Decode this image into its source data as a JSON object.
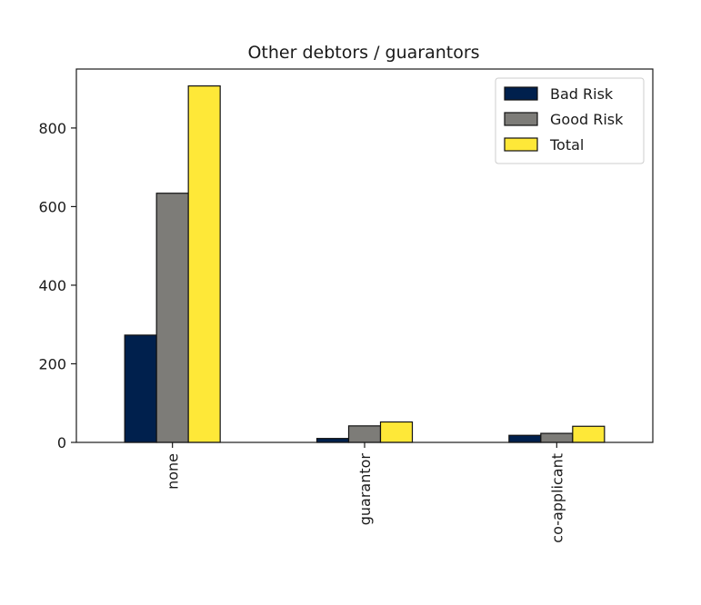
{
  "chart_data": {
    "type": "bar",
    "title": "Other debtors / guarantors",
    "xlabel": "",
    "ylabel": "",
    "categories": [
      "none",
      "guarantor",
      "co-applicant"
    ],
    "series": [
      {
        "name": "Bad Risk",
        "values": [
          273,
          10,
          18
        ],
        "color": "#00204d"
      },
      {
        "name": "Good Risk",
        "values": [
          634,
          42,
          23
        ],
        "color": "#7d7c78"
      },
      {
        "name": "Total",
        "values": [
          907,
          52,
          41
        ],
        "color": "#fee838"
      }
    ],
    "ylim": [
      0,
      950
    ],
    "yticks": [
      0,
      200,
      400,
      600,
      800
    ],
    "grid": false,
    "legend_position": "top-right"
  }
}
